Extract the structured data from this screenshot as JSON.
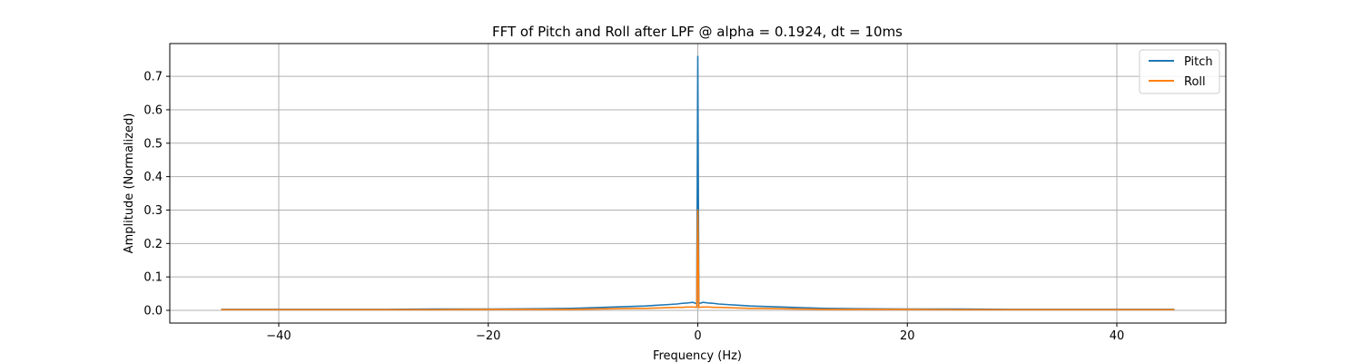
{
  "chart_data": {
    "type": "line",
    "title": "FFT of Pitch and Roll after LPF @ alpha = 0.1924, dt = 10ms",
    "xlabel": "Frequency (Hz)",
    "ylabel": "Amplitude (Normalized)",
    "xlim": [
      -50.4,
      50.4
    ],
    "ylim": [
      -0.038,
      0.798
    ],
    "xticks": [
      -40,
      -20,
      0,
      20,
      40
    ],
    "xtick_labels": [
      "−40",
      "−20",
      "0",
      "20",
      "40"
    ],
    "yticks": [
      0.0,
      0.1,
      0.2,
      0.3,
      0.4,
      0.5,
      0.6,
      0.7
    ],
    "ytick_labels": [
      "0.0",
      "0.1",
      "0.2",
      "0.3",
      "0.4",
      "0.5",
      "0.6",
      "0.7"
    ],
    "grid": true,
    "legend_position": "top-right",
    "series": [
      {
        "name": "Pitch",
        "color": "#1f77b4",
        "x": [
          -45.5,
          -40,
          -35,
          -30,
          -25,
          -20,
          -15,
          -12,
          -10,
          -8,
          -6,
          -5,
          -4,
          -3,
          -2,
          -1.5,
          -1,
          -0.5,
          -0.1,
          0,
          0.1,
          0.5,
          1,
          1.5,
          2,
          3,
          4,
          5,
          6,
          8,
          10,
          12,
          15,
          20,
          25,
          30,
          35,
          40,
          45.5
        ],
        "y": [
          0.003,
          0.003,
          0.003,
          0.003,
          0.004,
          0.004,
          0.005,
          0.006,
          0.008,
          0.01,
          0.012,
          0.013,
          0.015,
          0.017,
          0.019,
          0.021,
          0.022,
          0.024,
          0.02,
          0.76,
          0.02,
          0.024,
          0.022,
          0.021,
          0.019,
          0.017,
          0.015,
          0.013,
          0.012,
          0.01,
          0.008,
          0.006,
          0.005,
          0.004,
          0.004,
          0.003,
          0.003,
          0.003,
          0.003
        ]
      },
      {
        "name": "Roll",
        "color": "#ff7f0e",
        "x": [
          -45.5,
          -40,
          -35,
          -30,
          -25,
          -20,
          -15,
          -12,
          -10,
          -8,
          -6,
          -5,
          -4,
          -3,
          -2,
          -1.5,
          -1,
          -0.5,
          -0.1,
          0,
          0.1,
          0.5,
          1,
          1.5,
          2,
          3,
          4,
          5,
          6,
          8,
          10,
          12,
          15,
          20,
          25,
          30,
          35,
          40,
          45.5
        ],
        "y": [
          0.002,
          0.002,
          0.002,
          0.002,
          0.002,
          0.003,
          0.003,
          0.003,
          0.004,
          0.005,
          0.006,
          0.006,
          0.007,
          0.008,
          0.009,
          0.009,
          0.01,
          0.01,
          0.009,
          0.3,
          0.009,
          0.01,
          0.01,
          0.009,
          0.009,
          0.008,
          0.007,
          0.006,
          0.006,
          0.005,
          0.004,
          0.003,
          0.003,
          0.003,
          0.002,
          0.002,
          0.002,
          0.002,
          0.002
        ]
      }
    ]
  }
}
